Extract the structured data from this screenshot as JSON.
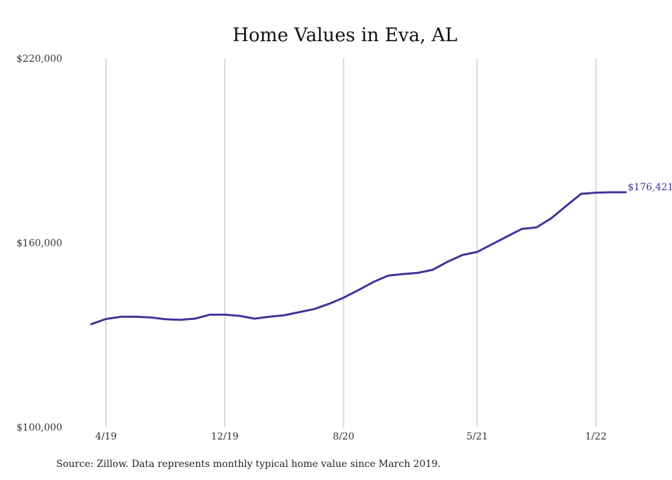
{
  "chart_data": {
    "type": "line",
    "title": "Home Values in Eva, AL",
    "xlabel": "",
    "ylabel": "",
    "ylim": [
      100000,
      220000
    ],
    "y_ticks": [
      "$220,000",
      "$160,000",
      "$100,000"
    ],
    "y_tick_values": [
      220000,
      160000,
      100000
    ],
    "x_ticks": [
      "4/19",
      "12/19",
      "8/20",
      "5/21",
      "1/22"
    ],
    "grid": "vertical",
    "line_color": "#3d3597",
    "end_label": "$176,421",
    "series": [
      {
        "x": [
          "3/19",
          "4/19",
          "5/19",
          "6/19",
          "7/19",
          "8/19",
          "9/19",
          "10/19",
          "11/19",
          "12/19",
          "1/20",
          "2/20",
          "3/20",
          "4/20",
          "5/20",
          "6/20",
          "7/20",
          "8/20",
          "9/20",
          "10/20",
          "11/20",
          "12/20",
          "1/21",
          "2/21",
          "3/21",
          "4/21",
          "5/21",
          "6/21",
          "7/21",
          "8/21",
          "9/21",
          "10/21",
          "11/21",
          "12/21",
          "1/22",
          "2/22",
          "3/22"
        ],
        "values": [
          133500,
          135200,
          135900,
          135900,
          135700,
          135100,
          134900,
          135300,
          136600,
          136600,
          136200,
          135300,
          135900,
          136400,
          137400,
          138400,
          140100,
          142100,
          144600,
          147200,
          149300,
          149800,
          150200,
          151200,
          153800,
          156000,
          157000,
          159500,
          162000,
          164500,
          165000,
          168000,
          172000,
          175900,
          176300,
          176421,
          176421
        ]
      }
    ]
  },
  "footer": {
    "source": "Source: Zillow. Data represents monthly typical home value since March 2019."
  }
}
